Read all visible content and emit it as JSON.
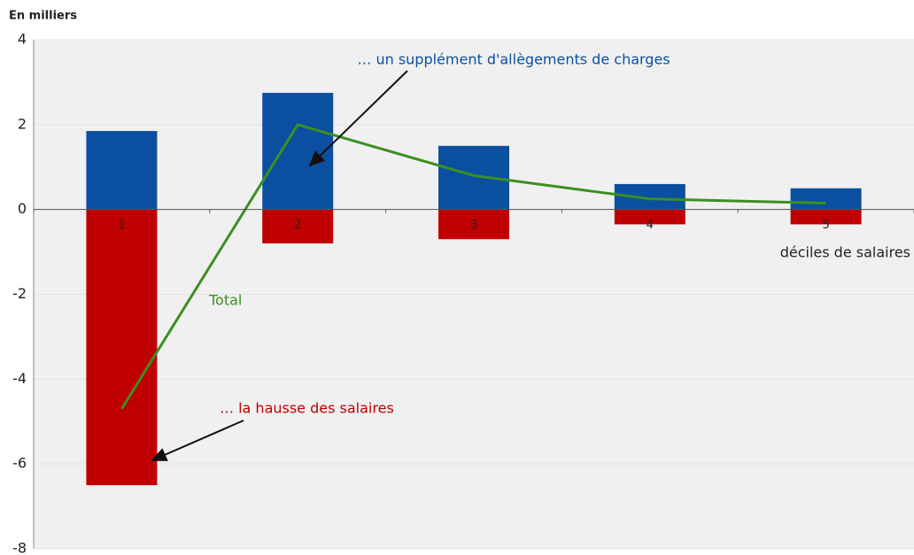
{
  "chart_data": {
    "type": "bar",
    "y_label": "En milliers",
    "x_label": "déciles de salaires",
    "categories": [
      "1",
      "2",
      "3",
      "4",
      "5"
    ],
    "series": [
      {
        "name": "… un supplément d'allègements de charges",
        "color": "#0b4fa0",
        "values": [
          1.85,
          2.75,
          1.5,
          0.6,
          0.5
        ]
      },
      {
        "name": "… la hausse des salaires",
        "color": "#c00000",
        "values": [
          -6.5,
          -0.8,
          -0.7,
          -0.35,
          -0.35
        ]
      },
      {
        "name": "Total",
        "color": "#3b8f22",
        "type": "line",
        "values": [
          -4.7,
          2.0,
          0.8,
          0.25,
          0.15
        ]
      }
    ],
    "ylim": [
      -8,
      4
    ],
    "yticks": [
      -8,
      -6,
      -4,
      -2,
      0,
      2,
      4
    ],
    "grid": true
  }
}
